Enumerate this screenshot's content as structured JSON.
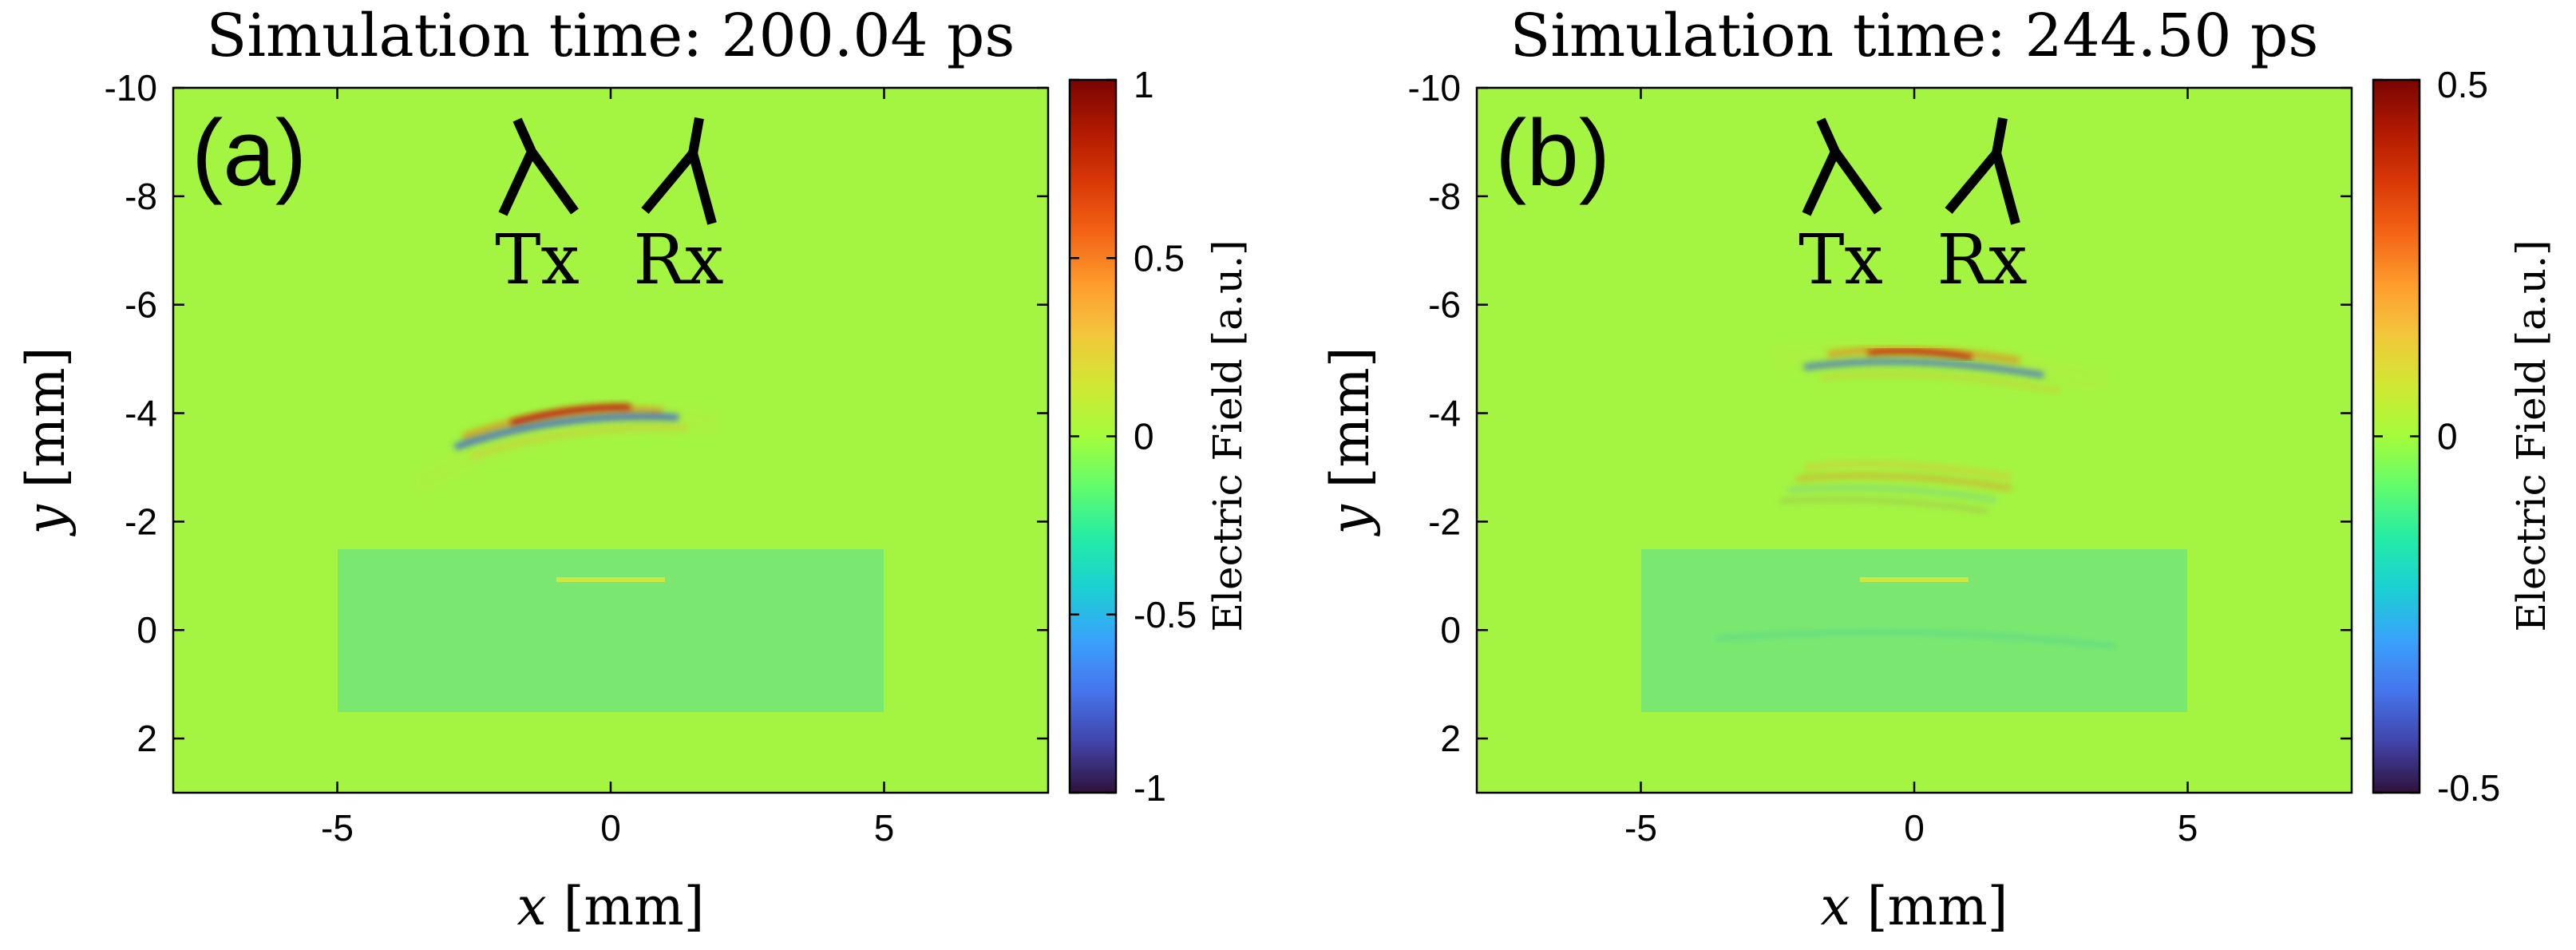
{
  "chart_data": [
    {
      "type": "heatmap",
      "panel_label": "(a)",
      "title": "Simulation time: 200.04 ps",
      "xlabel": "x [mm]",
      "xlabel_var": "x",
      "xlabel_unit": "[mm]",
      "ylabel": "y [mm]",
      "ylabel_var": "y",
      "ylabel_unit": "[mm]",
      "xlim": [
        -8,
        8
      ],
      "ylim": [
        -10,
        3
      ],
      "y_reversed": true,
      "xticks": [
        -5,
        0,
        5
      ],
      "xtick_labels": [
        "-5",
        "0",
        "5"
      ],
      "yticks": [
        -10,
        -8,
        -6,
        -4,
        -2,
        0,
        2
      ],
      "ytick_labels": [
        "-10",
        "-8",
        "-6",
        "-4",
        "-2",
        "0",
        "2"
      ],
      "colorbar": {
        "label": "Electric Field [a.u.]",
        "range": [
          -1,
          1
        ],
        "ticks": [
          1,
          0.5,
          0,
          -0.5,
          -1
        ],
        "tick_labels": [
          "1",
          "0.5",
          "0",
          "-0.5",
          "-1"
        ]
      },
      "antennas": [
        {
          "label": "Tx",
          "x": -1.5,
          "y": -8.7
        },
        {
          "label": "Rx",
          "x": 1.5,
          "y": -8.7
        }
      ],
      "object_box": {
        "x": [
          -5,
          5
        ],
        "y": [
          -1.5,
          1.5
        ]
      },
      "inner_line": {
        "x": [
          -1,
          1
        ],
        "y": -1
      }
    },
    {
      "type": "heatmap",
      "panel_label": "(b)",
      "title": "Simulation time: 244.50 ps",
      "xlabel": "x [mm]",
      "xlabel_var": "x",
      "xlabel_unit": "[mm]",
      "ylabel": "y [mm]",
      "ylabel_var": "y",
      "ylabel_unit": "[mm]",
      "xlim": [
        -8,
        8
      ],
      "ylim": [
        -10,
        3
      ],
      "y_reversed": true,
      "xticks": [
        -5,
        0,
        5
      ],
      "xtick_labels": [
        "-5",
        "0",
        "5"
      ],
      "yticks": [
        -10,
        -8,
        -6,
        -4,
        -2,
        0,
        2
      ],
      "ytick_labels": [
        "-10",
        "-8",
        "-6",
        "-4",
        "-2",
        "0",
        "2"
      ],
      "colorbar": {
        "label": "Electric Field [a.u.]",
        "range": [
          -0.5,
          0.5
        ],
        "ticks": [
          0.5,
          0,
          -0.5
        ],
        "tick_labels": [
          "0.5",
          "0",
          "-0.5"
        ]
      },
      "antennas": [
        {
          "label": "Tx",
          "x": -1.5,
          "y": -8.7
        },
        {
          "label": "Rx",
          "x": 1.5,
          "y": -8.7
        }
      ],
      "object_box": {
        "x": [
          -5,
          5
        ],
        "y": [
          -1.5,
          1.5
        ]
      },
      "inner_line": {
        "x": [
          -1,
          1
        ],
        "y": -1
      }
    }
  ],
  "colors": {
    "background_field": "#a3f542",
    "object_fill": "#7ae870",
    "inner_line": "#cde840",
    "positive_peak": "#c0180c",
    "negative_peak": "#3b5ee0",
    "colormap": [
      "#30123b",
      "#4145ab",
      "#4675ed",
      "#39a2fc",
      "#1bcfd4",
      "#24eca6",
      "#61fc6c",
      "#a4fc3b",
      "#d1e834",
      "#f3c63a",
      "#fe9b2d",
      "#f36315",
      "#d93806",
      "#b11901",
      "#7a0402"
    ]
  }
}
